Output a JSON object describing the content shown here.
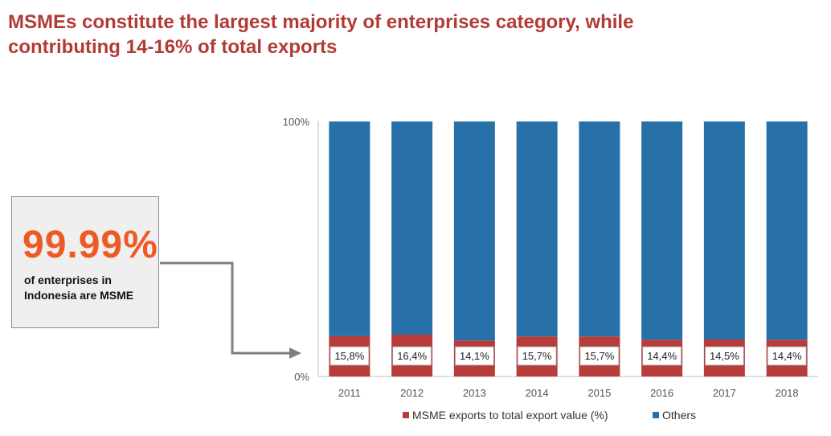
{
  "header": {
    "title_line1": "MSMEs constitute the largest majority of enterprises category, while",
    "title_line2": "contributing 14-16% of total exports"
  },
  "callout": {
    "value": "99.99%",
    "text_line1": "of enterprises in",
    "text_line2": "Indonesia are MSME"
  },
  "colors": {
    "title": "#b23a36",
    "callout_value": "#ee5a24",
    "msme": "#b83c3a",
    "others": "#2870a8",
    "arrow": "#7f7f7f"
  },
  "chart_data": {
    "type": "bar",
    "stacked": true,
    "categories": [
      "2011",
      "2012",
      "2013",
      "2014",
      "2015",
      "2016",
      "2017",
      "2018"
    ],
    "series": [
      {
        "name": "MSME exports to total export value (%)",
        "values": [
          15.8,
          16.4,
          14.1,
          15.7,
          15.7,
          14.4,
          14.5,
          14.4
        ]
      },
      {
        "name": "Others",
        "values": [
          84.2,
          83.6,
          85.9,
          84.3,
          84.3,
          85.6,
          85.5,
          85.6
        ]
      }
    ],
    "data_labels": [
      "15,8%",
      "16,4%",
      "14,1%",
      "15,7%",
      "15,7%",
      "14,4%",
      "14,5%",
      "14,4%"
    ],
    "ylim": [
      0,
      100
    ],
    "y_ticks": [
      {
        "value": 0,
        "label": "0%"
      },
      {
        "value": 100,
        "label": "100%"
      }
    ],
    "legend_position": "bottom"
  }
}
